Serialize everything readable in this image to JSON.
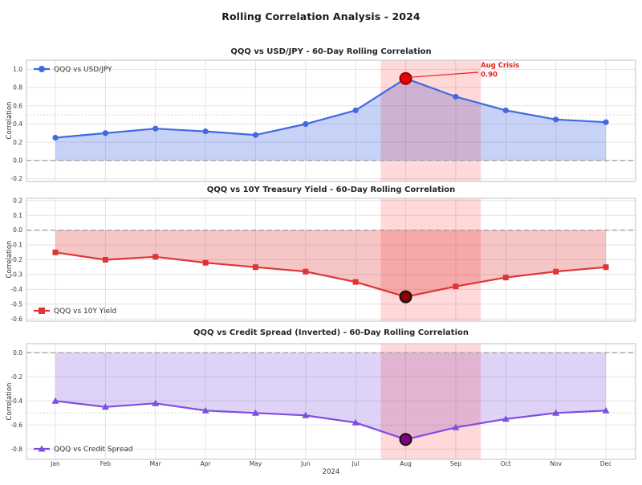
{
  "page_title": "Rolling Correlation Analysis - 2024",
  "xlabel": "2024",
  "months": [
    "Jan",
    "Feb",
    "Mar",
    "Apr",
    "May",
    "Jun",
    "Jul",
    "Aug",
    "Sep",
    "Oct",
    "Nov",
    "Dec"
  ],
  "crisis_band": {
    "start_index": 6.5,
    "end_index": 8.5,
    "color": "#FF0000",
    "opacity": 0.15
  },
  "chart_data": [
    {
      "type": "line",
      "title": "QQQ vs USD/JPY - 60-Day Rolling Correlation",
      "ylabel": "Correlation",
      "legend": {
        "label": "QQQ vs USD/JPY",
        "position": "top-left"
      },
      "marker": "circle",
      "color": "#4169E1",
      "fill_opacity": 0.3,
      "values": [
        0.25,
        0.3,
        0.35,
        0.32,
        0.28,
        0.4,
        0.55,
        0.9,
        0.7,
        0.55,
        0.45,
        0.42
      ],
      "ylim": [
        -0.23,
        1.1
      ],
      "yticks": [
        1.0,
        0.8,
        0.6,
        0.4,
        0.2,
        0.0,
        -0.2
      ],
      "ref_dashed": 0.0,
      "ref_dotted": 0.5,
      "highlight": {
        "x_index": 7,
        "value": 0.9,
        "fill": "#E60000",
        "stroke": "#990000"
      },
      "annotation": {
        "label": "Aug Crisis",
        "value_label": "0.90",
        "color": "#E8201E"
      }
    },
    {
      "type": "line",
      "title": "QQQ vs 10Y Treasury Yield - 60-Day Rolling Correlation",
      "ylabel": "Correlation",
      "legend": {
        "label": "QQQ vs 10Y Yield",
        "position": "bottom-left"
      },
      "marker": "square",
      "color": "#E03434",
      "fill_opacity": 0.28,
      "values": [
        -0.15,
        -0.2,
        -0.18,
        -0.22,
        -0.25,
        -0.28,
        -0.35,
        -0.45,
        -0.38,
        -0.32,
        -0.28,
        -0.25
      ],
      "ylim": [
        -0.615,
        0.215
      ],
      "yticks": [
        0.2,
        0.1,
        0.0,
        -0.1,
        -0.2,
        -0.3,
        -0.4,
        -0.5,
        -0.6
      ],
      "ref_dashed": 0.0,
      "highlight": {
        "x_index": 7,
        "value": -0.45,
        "fill": "#8B0000",
        "stroke": "#111111"
      }
    },
    {
      "type": "line",
      "title": "QQQ vs Credit Spread (Inverted) - 60-Day Rolling Correlation",
      "ylabel": "Correlation",
      "legend": {
        "label": "QQQ vs Credit Spread",
        "position": "bottom-left"
      },
      "marker": "triangle",
      "color": "#7D4EE0",
      "fill_opacity": 0.25,
      "values": [
        -0.4,
        -0.45,
        -0.42,
        -0.48,
        -0.5,
        -0.52,
        -0.58,
        -0.72,
        -0.62,
        -0.55,
        -0.5,
        -0.48
      ],
      "ylim": [
        -0.885,
        0.075
      ],
      "yticks": [
        0.0,
        -0.2,
        -0.4,
        -0.6,
        -0.8
      ],
      "ref_dashed": 0.0,
      "ref_dotted": -0.5,
      "highlight": {
        "x_index": 7,
        "value": -0.72,
        "fill": "#800080",
        "stroke": "#111111"
      }
    }
  ]
}
